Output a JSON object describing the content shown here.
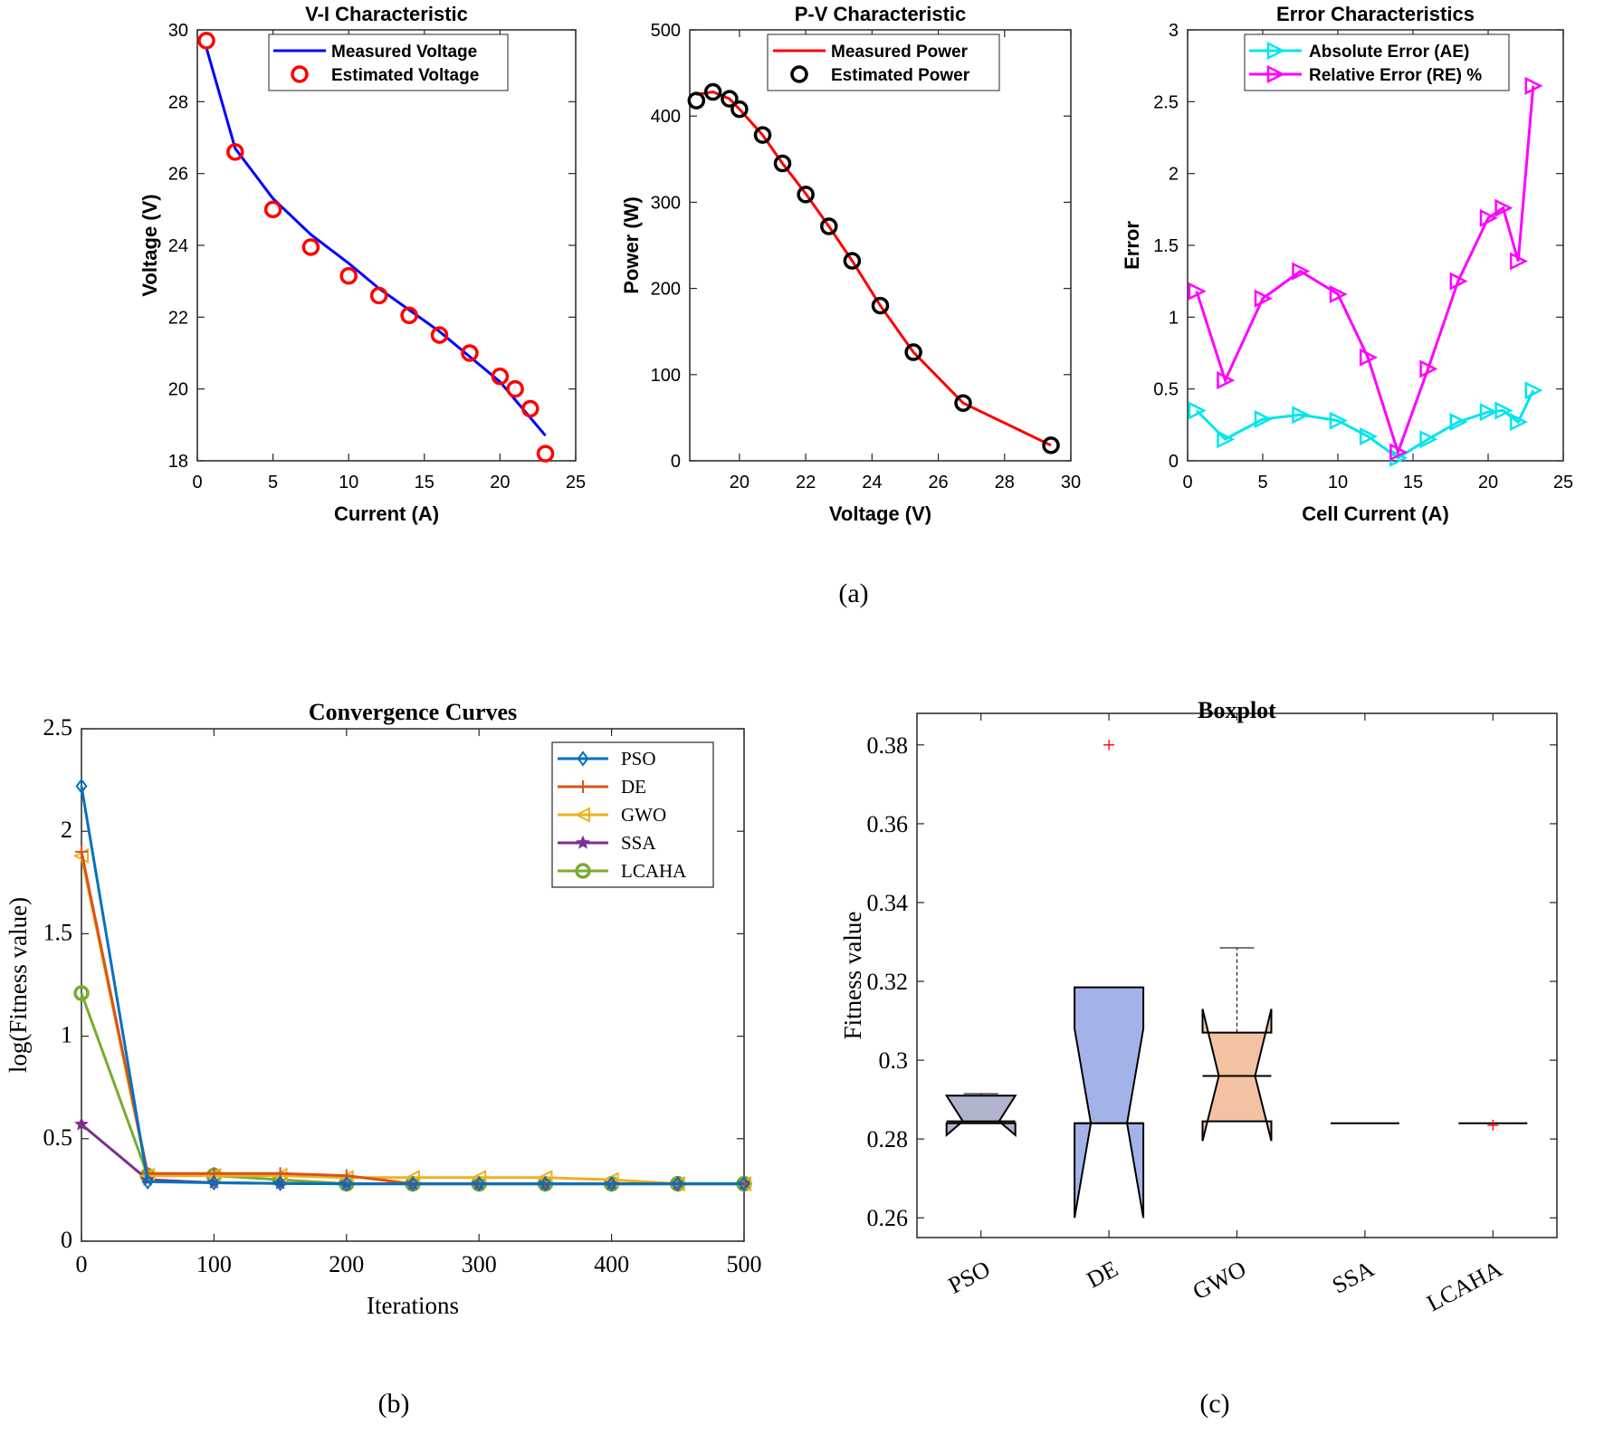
{
  "chart_data": [
    {
      "id": "vi",
      "type": "line",
      "title": "V-I Characteristic",
      "xlabel": "Current (A)",
      "ylabel": "Voltage (V)",
      "xlim": [
        0,
        25
      ],
      "ylim": [
        18,
        30
      ],
      "xticks": [
        0,
        5,
        10,
        15,
        20,
        25
      ],
      "yticks": [
        18,
        20,
        22,
        24,
        26,
        28,
        30
      ],
      "legend_position": "top-right",
      "series": [
        {
          "name": "Measured Voltage",
          "color": "#0000ff",
          "style": "line",
          "x": [
            0.6,
            2.5,
            5,
            7.5,
            10,
            12,
            14,
            16,
            18,
            20,
            21,
            22,
            23
          ],
          "y": [
            29.5,
            26.7,
            25.3,
            24.3,
            23.5,
            22.8,
            22.2,
            21.6,
            20.9,
            20.2,
            19.7,
            19.2,
            18.7
          ]
        },
        {
          "name": "Estimated Voltage",
          "color": "#ff0000",
          "style": "circle",
          "x": [
            0.6,
            2.5,
            5,
            7.5,
            10,
            12,
            14,
            16,
            18,
            20,
            21,
            22,
            23
          ],
          "y": [
            29.7,
            26.6,
            25.0,
            23.95,
            23.15,
            22.6,
            22.05,
            21.5,
            21.0,
            20.35,
            20.0,
            19.45,
            18.2
          ]
        }
      ]
    },
    {
      "id": "pv",
      "type": "line",
      "title": "P-V Characteristic",
      "xlabel": "Voltage (V)",
      "ylabel": "Power (W)",
      "xlim": [
        18.5,
        30
      ],
      "ylim": [
        0,
        500
      ],
      "xticks": [
        20,
        22,
        24,
        26,
        28,
        30
      ],
      "yticks": [
        0,
        100,
        200,
        300,
        400,
        500
      ],
      "legend_position": "top-right",
      "series": [
        {
          "name": "Measured Power",
          "color": "#ff0000",
          "style": "line",
          "x": [
            18.7,
            19.2,
            19.7,
            20.0,
            20.7,
            21.3,
            22.0,
            22.7,
            23.4,
            24.25,
            25.25,
            26.75,
            29.4
          ],
          "y": [
            425,
            428,
            420,
            408,
            378,
            345,
            310,
            272,
            232,
            180,
            126,
            67,
            18
          ]
        },
        {
          "name": "Estimated Power",
          "color": "#000000",
          "style": "circle",
          "x": [
            18.7,
            19.2,
            19.7,
            20.0,
            20.7,
            21.3,
            22.0,
            22.7,
            23.4,
            24.25,
            25.25,
            26.75,
            29.4
          ],
          "y": [
            418,
            428,
            420,
            408,
            378,
            345,
            309,
            272,
            232,
            180,
            126,
            67,
            18
          ]
        }
      ]
    },
    {
      "id": "err",
      "type": "line",
      "title": "Error Characteristics",
      "xlabel": "Cell Current (A)",
      "ylabel": "Error",
      "xlim": [
        0,
        25
      ],
      "ylim": [
        0,
        3
      ],
      "xticks": [
        0,
        5,
        10,
        15,
        20,
        25
      ],
      "yticks": [
        0,
        0.5,
        1,
        1.5,
        2,
        2.5,
        3
      ],
      "legend_position": "top-right",
      "series": [
        {
          "name": "Absolute Error (AE)",
          "color": "#00e5ee",
          "style": "line-triangle-right",
          "x": [
            0.6,
            2.5,
            5,
            7.5,
            10,
            12,
            14,
            16,
            18,
            20,
            21,
            22,
            23
          ],
          "y": [
            0.35,
            0.15,
            0.29,
            0.32,
            0.28,
            0.17,
            0.02,
            0.15,
            0.27,
            0.34,
            0.35,
            0.27,
            0.49
          ]
        },
        {
          "name": "Relative Error (RE) %",
          "color": "#ff00ff",
          "style": "line-triangle-right",
          "x": [
            0.6,
            2.5,
            5,
            7.5,
            10,
            12,
            14,
            16,
            18,
            20,
            21,
            22,
            23
          ],
          "y": [
            1.18,
            0.56,
            1.13,
            1.32,
            1.16,
            0.72,
            0.06,
            0.64,
            1.25,
            1.69,
            1.76,
            1.39,
            2.61
          ]
        }
      ]
    },
    {
      "id": "conv",
      "type": "line",
      "title": "Convergence Curves",
      "xlabel": "Iterations",
      "ylabel": "log(Fitness value)",
      "xlim": [
        0,
        500
      ],
      "ylim": [
        0,
        2.5
      ],
      "xticks": [
        0,
        100,
        200,
        300,
        400,
        500
      ],
      "yticks": [
        0,
        0.5,
        1,
        1.5,
        2,
        2.5
      ],
      "legend_position": "top-right",
      "series": [
        {
          "name": "PSO",
          "color": "#0072bd",
          "marker": "diamond",
          "x": [
            0,
            50,
            100,
            150,
            200,
            250,
            300,
            350,
            400,
            450,
            500
          ],
          "y": [
            2.22,
            0.29,
            0.285,
            0.282,
            0.28,
            0.28,
            0.28,
            0.28,
            0.28,
            0.28,
            0.28
          ]
        },
        {
          "name": "DE",
          "color": "#d95319",
          "marker": "plus",
          "x": [
            0,
            50,
            100,
            150,
            200,
            250,
            300,
            350,
            400,
            450,
            500
          ],
          "y": [
            1.9,
            0.33,
            0.33,
            0.33,
            0.32,
            0.28,
            0.28,
            0.28,
            0.28,
            0.28,
            0.28
          ]
        },
        {
          "name": "GWO",
          "color": "#edb120",
          "marker": "triangle-left",
          "x": [
            0,
            50,
            100,
            150,
            200,
            250,
            300,
            350,
            400,
            450,
            500
          ],
          "y": [
            1.88,
            0.32,
            0.32,
            0.32,
            0.31,
            0.31,
            0.31,
            0.31,
            0.3,
            0.28,
            0.28
          ]
        },
        {
          "name": "SSA",
          "color": "#7e2f8e",
          "marker": "star",
          "x": [
            0,
            50,
            100,
            150,
            200,
            250,
            300,
            350,
            400,
            450,
            500
          ],
          "y": [
            0.57,
            0.3,
            0.285,
            0.282,
            0.28,
            0.28,
            0.28,
            0.28,
            0.28,
            0.28,
            0.28
          ]
        },
        {
          "name": "LCAHA",
          "color": "#77ac30",
          "marker": "circle",
          "x": [
            0,
            50,
            100,
            150,
            200,
            250,
            300,
            350,
            400,
            450,
            500
          ],
          "y": [
            1.21,
            0.32,
            0.32,
            0.3,
            0.28,
            0.28,
            0.28,
            0.28,
            0.28,
            0.28,
            0.28
          ]
        }
      ]
    },
    {
      "id": "box",
      "type": "boxplot",
      "title": "Boxplot",
      "xlabel": "",
      "ylabel": "Fitness value",
      "ylim": [
        0.255,
        0.388
      ],
      "yticks": [
        0.26,
        0.28,
        0.3,
        0.32,
        0.34,
        0.36,
        0.38
      ],
      "categories": [
        "PSO",
        "DE",
        "GWO",
        "SSA",
        "LCAHA"
      ],
      "boxes": [
        {
          "name": "PSO",
          "color": "#b0b4cc",
          "q1": 0.284,
          "median": 0.2845,
          "q3": 0.291,
          "notch_low": 0.281,
          "notch_high": 0.291,
          "whisker_low": 0.284,
          "whisker_high": 0.2915,
          "outliers": []
        },
        {
          "name": "DE",
          "color": "#a3b3e8",
          "q1": 0.284,
          "median": 0.284,
          "q3": 0.3185,
          "notch_low": 0.26,
          "notch_high": 0.308,
          "whisker_low": 0.284,
          "whisker_high": 0.3185,
          "outliers": [
            0.38
          ]
        },
        {
          "name": "GWO",
          "color": "#f3c2a3",
          "q1": 0.2845,
          "median": 0.296,
          "q3": 0.307,
          "notch_low": 0.2795,
          "notch_high": 0.313,
          "whisker_low": 0.2845,
          "whisker_high": 0.3285,
          "outliers": []
        },
        {
          "name": "SSA",
          "color": "#ffffff",
          "q1": 0.284,
          "median": 0.284,
          "q3": 0.284,
          "notch_low": 0.284,
          "notch_high": 0.284,
          "whisker_low": 0.284,
          "whisker_high": 0.284,
          "outliers": []
        },
        {
          "name": "LCAHA",
          "color": "#ffffff",
          "q1": 0.284,
          "median": 0.284,
          "q3": 0.284,
          "notch_low": 0.284,
          "notch_high": 0.284,
          "whisker_low": 0.284,
          "whisker_high": 0.284,
          "outliers": [
            0.2835
          ]
        }
      ]
    }
  ],
  "captions": {
    "a": "(a)",
    "b": "(b)",
    "c": "(c)"
  }
}
